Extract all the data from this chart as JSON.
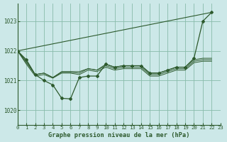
{
  "background_color": "#cce8e8",
  "grid_color": "#88bbaa",
  "line_color": "#2d5a2d",
  "title": "Graphe pression niveau de la mer (hPa)",
  "xlim": [
    0,
    23
  ],
  "ylim": [
    1019.5,
    1023.6
  ],
  "yticks": [
    1020,
    1021,
    1022,
    1023
  ],
  "xticks": [
    0,
    1,
    2,
    3,
    4,
    5,
    6,
    7,
    8,
    9,
    10,
    11,
    12,
    13,
    14,
    15,
    16,
    17,
    18,
    19,
    20,
    21,
    22,
    23
  ],
  "straight_line_x": [
    0,
    22
  ],
  "straight_line_y": [
    1022.0,
    1023.3
  ],
  "curve_main": {
    "x": [
      0,
      1,
      2,
      3,
      4,
      5,
      6,
      7,
      8,
      9,
      10,
      11,
      12,
      13,
      14,
      15,
      16,
      17,
      18,
      19,
      20,
      21,
      22
    ],
    "y": [
      1022.0,
      1021.7,
      1021.2,
      1021.0,
      1020.85,
      1020.4,
      1020.38,
      1021.1,
      1021.15,
      1021.15,
      1021.55,
      1021.45,
      1021.5,
      1021.5,
      1021.5,
      1021.25,
      1021.25,
      1021.35,
      1021.45,
      1021.45,
      1021.75,
      1023.0,
      1023.3
    ]
  },
  "curves_smooth": [
    {
      "x": [
        0,
        1,
        2,
        3,
        4,
        5,
        6,
        7,
        8,
        9,
        10,
        11,
        12,
        13,
        14,
        15,
        16,
        17,
        18,
        19,
        20,
        21,
        22
      ],
      "y": [
        1022.0,
        1021.65,
        1021.2,
        1021.25,
        1021.1,
        1021.3,
        1021.3,
        1021.3,
        1021.4,
        1021.35,
        1021.55,
        1021.45,
        1021.5,
        1021.5,
        1021.5,
        1021.25,
        1021.25,
        1021.35,
        1021.45,
        1021.45,
        1021.7,
        1021.75,
        1021.75
      ]
    },
    {
      "x": [
        0,
        1,
        2,
        3,
        4,
        5,
        6,
        7,
        8,
        9,
        10,
        11,
        12,
        13,
        14,
        15,
        16,
        17,
        18,
        19,
        20,
        21,
        22
      ],
      "y": [
        1022.0,
        1021.6,
        1021.2,
        1021.25,
        1021.1,
        1021.28,
        1021.28,
        1021.25,
        1021.4,
        1021.35,
        1021.5,
        1021.4,
        1021.45,
        1021.45,
        1021.45,
        1021.2,
        1021.2,
        1021.3,
        1021.4,
        1021.4,
        1021.65,
        1021.7,
        1021.7
      ]
    },
    {
      "x": [
        0,
        1,
        2,
        3,
        4,
        5,
        6,
        7,
        8,
        9,
        10,
        11,
        12,
        13,
        14,
        15,
        16,
        17,
        18,
        19,
        20,
        21,
        22
      ],
      "y": [
        1022.0,
        1021.55,
        1021.15,
        1021.2,
        1021.08,
        1021.25,
        1021.25,
        1021.2,
        1021.35,
        1021.3,
        1021.45,
        1021.35,
        1021.4,
        1021.4,
        1021.4,
        1021.15,
        1021.15,
        1021.25,
        1021.35,
        1021.35,
        1021.6,
        1021.65,
        1021.65
      ]
    }
  ]
}
